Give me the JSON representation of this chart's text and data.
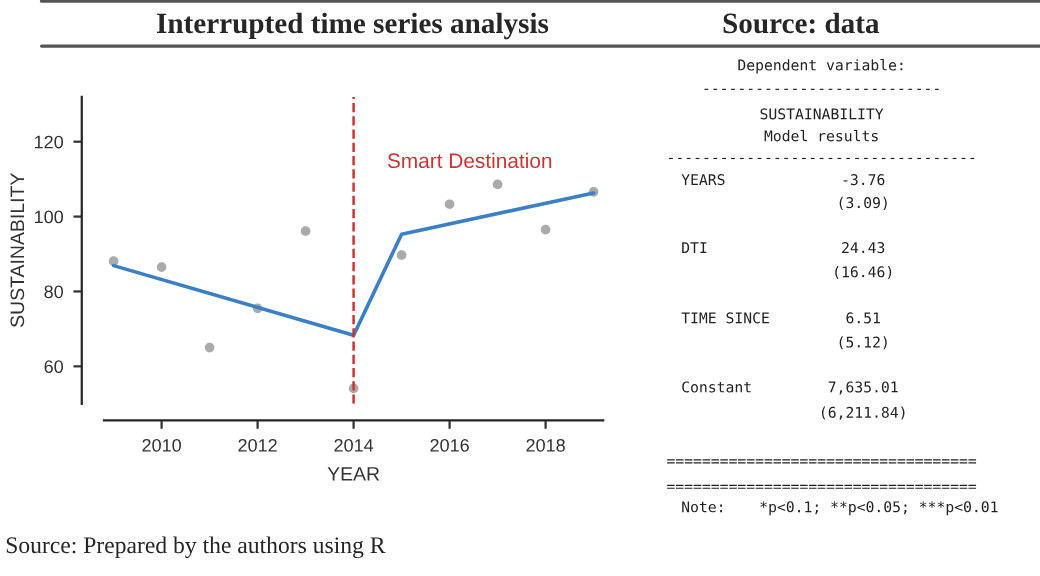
{
  "chart_data": [
    {
      "type": "scatter",
      "title": "Interrupted time series analysis",
      "xlabel": "YEAR",
      "ylabel": "SUSTAINABILITY",
      "series": [
        {
          "type": "scatter",
          "marker": "circle",
          "color": "#aaaaaa",
          "x": [
            2009,
            2010,
            2011,
            2012,
            2013,
            2014,
            2015,
            2016,
            2017,
            2018,
            2019
          ],
          "values": [
            88.1,
            86.5,
            65,
            75.5,
            96.1,
            54.1,
            89.7,
            103.3,
            108.6,
            96.5,
            106.6
          ]
        },
        {
          "type": "line",
          "color": "#3b7fc4",
          "x": [
            2009,
            2014,
            2015,
            2019
          ],
          "values": [
            86.9,
            68.3,
            95.3,
            106.3
          ]
        }
      ],
      "xlim": [
        2008.8,
        2019.2
      ],
      "xticks": [
        2010,
        2012,
        2014,
        2016,
        2018
      ],
      "ylim": [
        50,
        132
      ],
      "yticks": [
        60,
        80,
        100,
        120
      ],
      "ref_lines": [
        {
          "axis": "x",
          "value": 2014,
          "label": "Smart Destination",
          "color": "#cc3333",
          "line_style": "dashed"
        }
      ],
      "annotations": [
        "Source: Prepared by the authors using R"
      ],
      "grid": false,
      "legend": false
    },
    {
      "type": "other",
      "title": "Source: data",
      "annotations": [
        "Dependent variable:",
        "---------------------------",
        "SUSTAINABILITY",
        "Model results",
        "-----------------------------------",
        "YEARS",
        "-3.76",
        "(3.09)",
        "DTI",
        "24.43",
        "(16.46)",
        "TIME SINCE",
        "6.51",
        "(5.12)",
        "Constant",
        "7,635.01",
        "(6,211.84)",
        "===================================",
        "===================================",
        "Note:",
        "*p<0.1; **p<0.05; ***p<0.01"
      ]
    }
  ]
}
